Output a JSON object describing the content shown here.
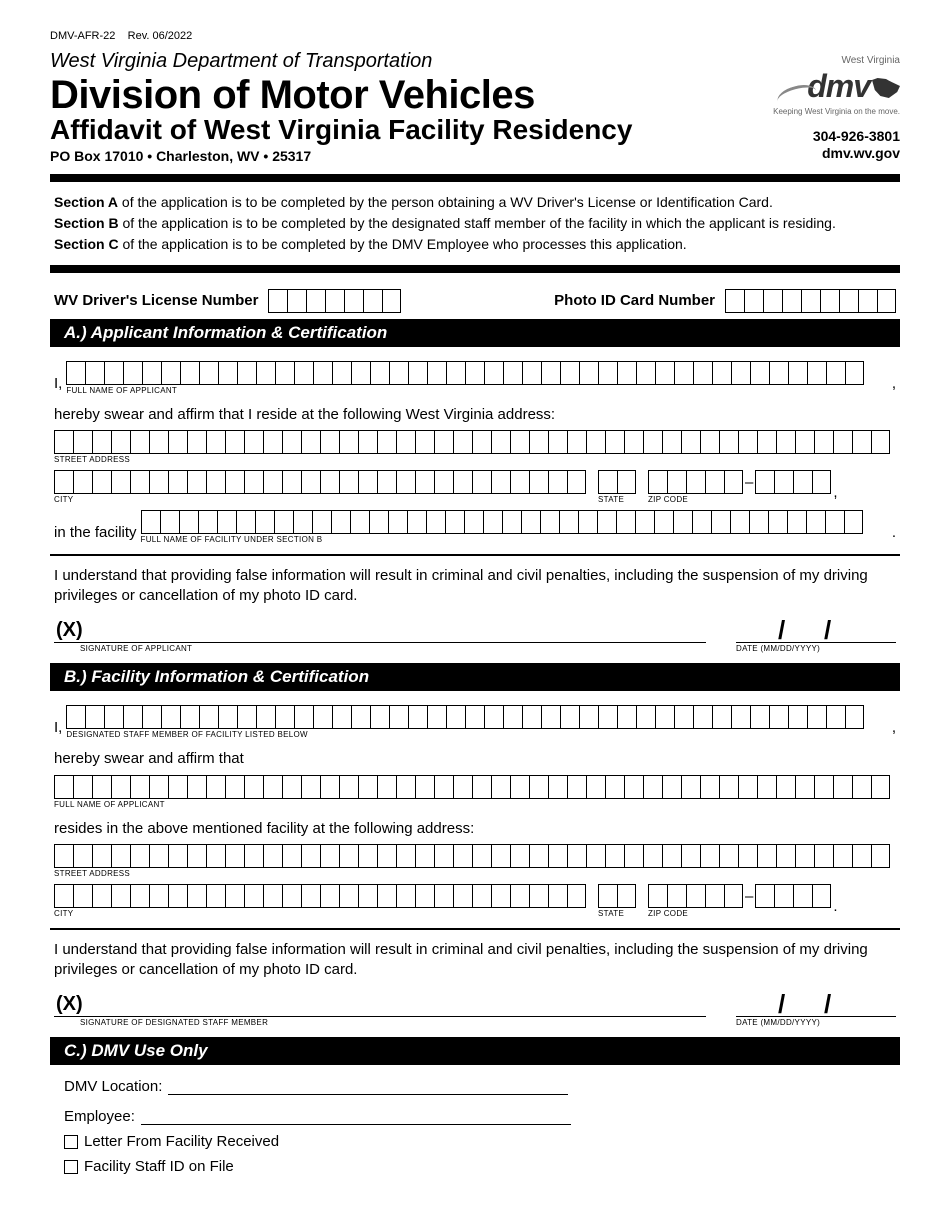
{
  "form_id": "DMV-AFR-22",
  "revision": "Rev. 06/2022",
  "header": {
    "department": "West Virginia Department of Transportation",
    "division": "Division of Motor Vehicles",
    "subtitle": "Affidavit of West Virginia Facility Residency",
    "address": "PO Box 17010  •  Charleston, WV  •  25317",
    "logo_state": "West Virginia",
    "logo_text": "dmv",
    "logo_tagline": "Keeping West Virginia on the move.",
    "phone": "304-926-3801",
    "website": "dmv.wv.gov"
  },
  "instructions": {
    "a_label": "Section A",
    "a_text": " of the application is to be completed by the person obtaining a WV Driver's License or Identification Card.",
    "b_label": "Section B",
    "b_text": " of the application is to be completed by the designated staff member of the facility in which the applicant is residing.",
    "c_label": "Section C",
    "c_text": " of the application is to be completed by the DMV Employee who processes this application."
  },
  "ids": {
    "dl_label": "WV Driver's License Number",
    "dl_cells": 7,
    "photo_label": "Photo ID Card Number",
    "photo_cells": 9
  },
  "section_a": {
    "title": "A.) Applicant Information & Certification",
    "i_prefix": "I,",
    "name_cells": 42,
    "name_sub": "FULL NAME OF APPLICANT",
    "affirm": "hereby swear and affirm that I reside at the following West Virginia address:",
    "street_cells": 44,
    "street_sub": "STREET ADDRESS",
    "city_cells": 28,
    "city_sub": "CITY",
    "state_cells": 2,
    "state_sub": "STATE",
    "zip5_cells": 5,
    "zip4_cells": 4,
    "zip_sub": "ZIP CODE",
    "facility_prefix": "in the facility",
    "facility_cells": 38,
    "facility_sub": "FULL NAME OF FACILITY UNDER SECTION B",
    "penalty": "I understand that providing false information will result in criminal and civil penalties, including the suspension of my driving privileges or cancellation of my photo ID card.",
    "sig_x": "(X)",
    "sig_sub": "SIGNATURE OF APPLICANT",
    "date_sub": "DATE (MM/DD/YYYY)"
  },
  "section_b": {
    "title": "B.) Facility Information & Certification",
    "i_prefix": "I,",
    "staff_cells": 42,
    "staff_sub": "DESIGNATED STAFF MEMBER OF FACILITY LISTED BELOW",
    "affirm": "hereby swear and affirm that",
    "name_cells": 44,
    "name_sub": "FULL NAME OF APPLICANT",
    "resides": "resides in the above mentioned facility at the following address:",
    "street_cells": 44,
    "street_sub": "STREET ADDRESS",
    "city_cells": 28,
    "city_sub": "CITY",
    "state_cells": 2,
    "state_sub": "STATE",
    "zip5_cells": 5,
    "zip4_cells": 4,
    "zip_sub": "ZIP CODE",
    "penalty": "I understand that providing false information will result in criminal and civil penalties, including the suspension of my driving privileges or cancellation of my photo ID card.",
    "sig_x": "(X)",
    "sig_sub": "SIGNATURE OF DESIGNATED STAFF MEMBER",
    "date_sub": "DATE (MM/DD/YYYY)"
  },
  "section_c": {
    "title": "C.) DMV Use Only",
    "location_label": "DMV Location:",
    "employee_label": "Employee:",
    "check1": "Letter From Facility Received",
    "check2": "Facility Staff ID on File"
  }
}
